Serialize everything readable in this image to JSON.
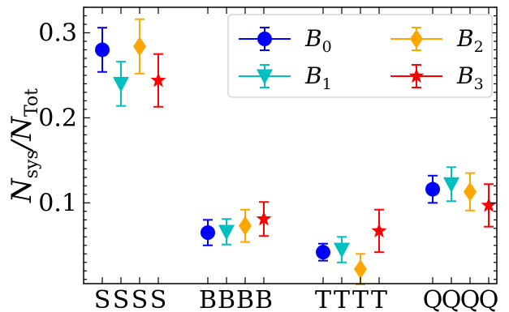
{
  "chart_data": {
    "type": "scatter",
    "ylabel": {
      "main": "N",
      "sub1": "sys",
      "mid": "/N",
      "sub2": "Tot"
    },
    "ylim": [
      0.005,
      0.33
    ],
    "yticks": [
      {
        "value": 0.1,
        "label": "0.1"
      },
      {
        "value": 0.2,
        "label": "0.2"
      },
      {
        "value": 0.3,
        "label": "0.3"
      }
    ],
    "groups": [
      {
        "labels": [
          "S",
          "S",
          "S",
          "S"
        ]
      },
      {
        "labels": [
          "B",
          "B",
          "B",
          "B"
        ]
      },
      {
        "labels": [
          "T",
          "T",
          "T",
          "T"
        ]
      },
      {
        "labels": [
          "Q",
          "Q",
          "Q",
          "Q"
        ]
      }
    ],
    "legend": {
      "position": "top-right",
      "columns": 2
    },
    "series": [
      {
        "name": "B",
        "sub": "0",
        "color": "#0000ff",
        "marker": "circle",
        "values": [
          0.28,
          0.065,
          0.042,
          0.116
        ],
        "err": [
          0.026,
          0.015,
          0.01,
          0.016
        ]
      },
      {
        "name": "B",
        "sub": "1",
        "color": "#00bfbf",
        "marker": "triangle-down",
        "values": [
          0.24,
          0.066,
          0.045,
          0.122
        ],
        "err": [
          0.026,
          0.015,
          0.015,
          0.02
        ]
      },
      {
        "name": "B",
        "sub": "2",
        "color": "#ffa500",
        "marker": "diamond",
        "values": [
          0.284,
          0.073,
          0.022,
          0.113
        ],
        "err": [
          0.032,
          0.019,
          0.018,
          0.022
        ]
      },
      {
        "name": "B",
        "sub": "3",
        "color": "#ff0000",
        "marker": "star",
        "values": [
          0.244,
          0.081,
          0.067,
          0.097
        ],
        "err": [
          0.031,
          0.02,
          0.025,
          0.025
        ]
      }
    ]
  }
}
